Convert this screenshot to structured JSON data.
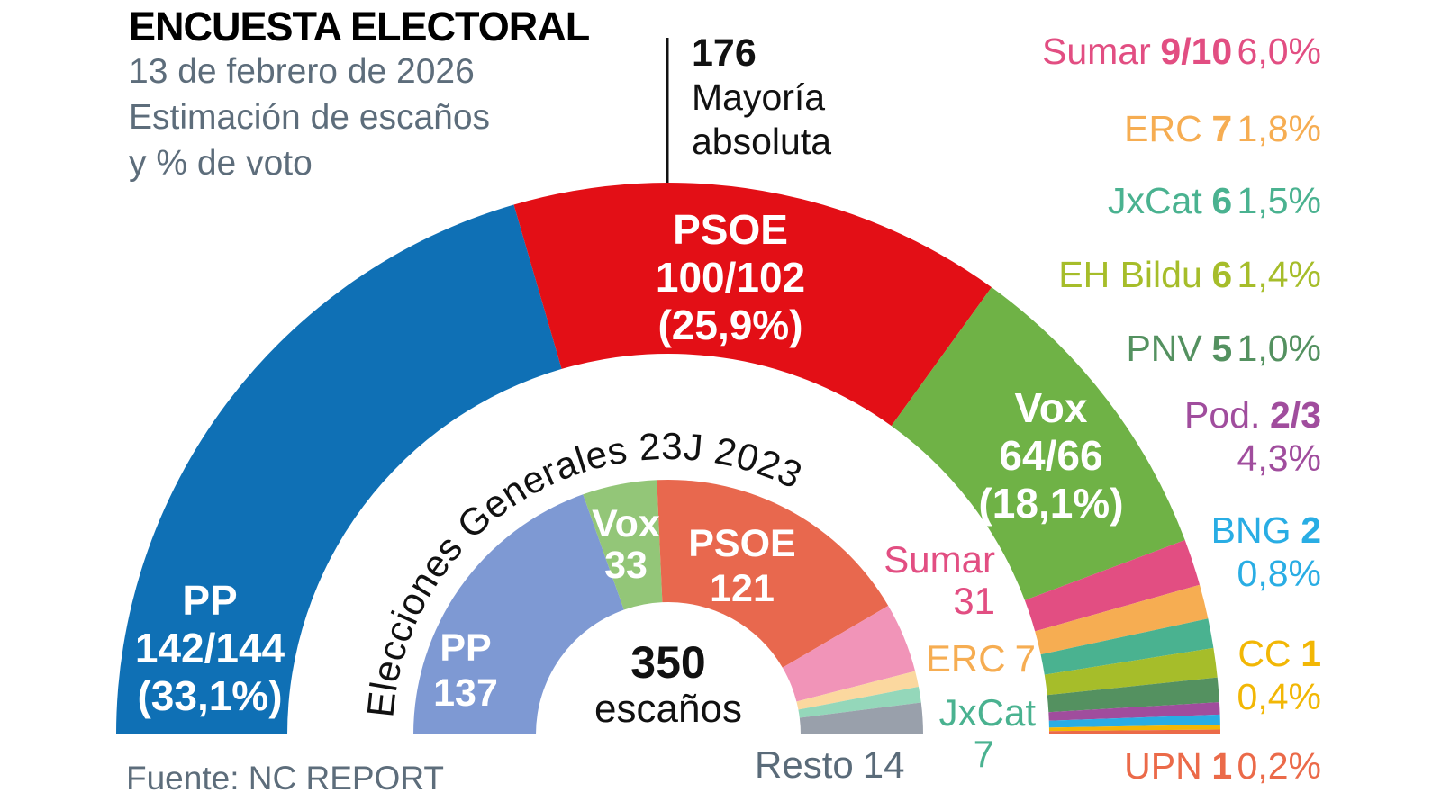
{
  "header": {
    "title": "ENCUESTA ELECTORAL",
    "subtitle_lines": [
      "13 de febrero de 2026",
      "Estimación de escaños",
      "y % de voto"
    ]
  },
  "majority": {
    "seats": "176",
    "line1": "Mayoría",
    "line2": "absoluta"
  },
  "center": {
    "value": "350",
    "unit": "escaños"
  },
  "inner_title": "Elecciones Generales 23J 2023",
  "source": "Fuente: NC REPORT",
  "chart_data": {
    "type": "half-donut-parliament",
    "total_seats": 350,
    "majority_seats": 176,
    "outer_ring": {
      "description": "Estimación de escaños y % de voto, 13 de febrero de 2026",
      "segments": [
        {
          "party": "PP",
          "seats": 143,
          "seats_label": "142/144",
          "pct": "33,1%",
          "color": "#0f70b5"
        },
        {
          "party": "PSOE",
          "seats": 101,
          "seats_label": "100/102",
          "pct": "25,9%",
          "color": "#e30f16"
        },
        {
          "party": "Vox",
          "seats": 65,
          "seats_label": "64/66",
          "pct": "18,1%",
          "color": "#6fb246"
        },
        {
          "party": "Sumar",
          "seats": 9.5,
          "seats_label": "9/10",
          "pct": "6,0%",
          "color": "#e24e82"
        },
        {
          "party": "ERC",
          "seats": 7,
          "seats_label": "7",
          "pct": "1,8%",
          "color": "#f6ad52"
        },
        {
          "party": "JxCat",
          "seats": 6,
          "seats_label": "6",
          "pct": "1,5%",
          "color": "#4ab290"
        },
        {
          "party": "EH Bildu",
          "seats": 6,
          "seats_label": "6",
          "pct": "1,4%",
          "color": "#a6bd2a"
        },
        {
          "party": "PNV",
          "seats": 5,
          "seats_label": "5",
          "pct": "1,0%",
          "color": "#549160"
        },
        {
          "party": "Pod.",
          "seats": 2.5,
          "seats_label": "2/3",
          "pct": "4,3%",
          "color": "#a04d9d"
        },
        {
          "party": "BNG",
          "seats": 2,
          "seats_label": "2",
          "pct": "0,8%",
          "color": "#29ade4"
        },
        {
          "party": "CC",
          "seats": 1,
          "seats_label": "1",
          "pct": "0,4%",
          "color": "#f2b705"
        },
        {
          "party": "UPN",
          "seats": 1,
          "seats_label": "1",
          "pct": "0,2%",
          "color": "#eb6a49"
        }
      ]
    },
    "inner_ring": {
      "description": "Elecciones Generales 23J 2023",
      "segments": [
        {
          "party": "PP",
          "seats": 137,
          "color": "#7e99d3"
        },
        {
          "party": "Vox",
          "seats": 33,
          "color": "#93c678"
        },
        {
          "party": "PSOE",
          "seats": 121,
          "color": "#e8684e"
        },
        {
          "party": "Sumar",
          "seats": 31,
          "color": "#f194b8"
        },
        {
          "party": "ERC",
          "seats": 7,
          "color": "#fbd89f"
        },
        {
          "party": "JxCat",
          "seats": 7,
          "color": "#94d7ba"
        },
        {
          "party": "Resto",
          "seats": 14,
          "color": "#99a0ab"
        }
      ]
    }
  },
  "arc_labels": {
    "pp_outer": {
      "line1": "PP",
      "line2": "142/144",
      "line3": "(33,1%)"
    },
    "psoe_outer": {
      "line1": "PSOE",
      "line2": "100/102",
      "line3": "(25,9%)"
    },
    "vox_outer": {
      "line1": "Vox",
      "line2": "64/66",
      "line3": "(18,1%)"
    },
    "pp_inner": {
      "line1": "PP",
      "line2": "137"
    },
    "vox_inner": {
      "line1": "Vox",
      "line2": "33"
    },
    "psoe_inner": {
      "line1": "PSOE",
      "line2": "121"
    },
    "sumar_inner": {
      "party": "Sumar",
      "seats": "31",
      "color": "#e24e82"
    },
    "erc_inner": {
      "party": "ERC",
      "seats": "7",
      "color": "#f6ad52"
    },
    "jxcat_inner": {
      "party": "JxCat",
      "seats": "7",
      "color": "#4ab290"
    },
    "resto_inner": {
      "party": "Resto",
      "seats": "14",
      "color": "#5a6b79"
    }
  },
  "legend": {
    "items": [
      {
        "party": "Sumar",
        "seats": "9/10",
        "pct": "6,0%",
        "color": "#e24e82"
      },
      {
        "party": "ERC",
        "seats": "7",
        "pct": "1,8%",
        "color": "#f6ad52"
      },
      {
        "party": "JxCat",
        "seats": "6",
        "pct": "1,5%",
        "color": "#4ab290"
      },
      {
        "party": "EH Bildu",
        "seats": "6",
        "pct": "1,4%",
        "color": "#a6bd2a"
      },
      {
        "party": "PNV",
        "seats": "5",
        "pct": "1,0%",
        "color": "#549160"
      },
      {
        "party": "Pod.",
        "seats": "2/3",
        "pct": "4,3%",
        "color": "#a04d9d"
      },
      {
        "party": "BNG",
        "seats": "2",
        "pct": "0,8%",
        "color": "#29ade4"
      },
      {
        "party": "CC",
        "seats": "1",
        "pct": "0,4%",
        "color": "#f2b705"
      },
      {
        "party": "UPN",
        "seats": "1",
        "pct": "0,2%",
        "color": "#eb6a49"
      }
    ]
  }
}
